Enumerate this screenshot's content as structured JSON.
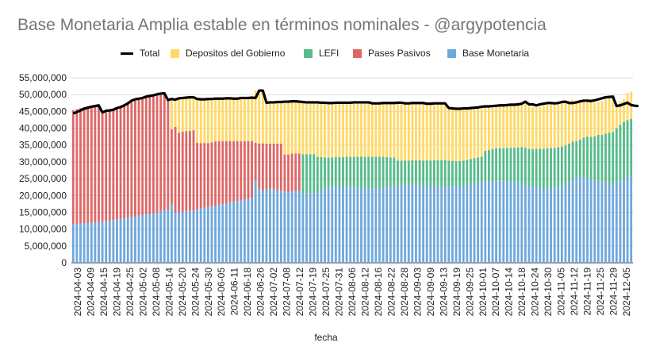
{
  "chart_data": {
    "type": "bar",
    "stacked": true,
    "title": "Base Monetaria Amplia estable en términos nominales - @argypotencia",
    "xlabel": "fecha",
    "ylabel": "",
    "ylim": [
      0,
      55000000
    ],
    "y_ticks": [
      0,
      5000000,
      10000000,
      15000000,
      20000000,
      25000000,
      30000000,
      35000000,
      40000000,
      45000000,
      50000000,
      55000000
    ],
    "y_tick_labels": [
      "0",
      "5,000,000",
      "10,000,000",
      "15,000,000",
      "20,000,000",
      "25,000,000",
      "30,000,000",
      "35,000,000",
      "40,000,000",
      "45,000,000",
      "50,000,000",
      "55,000,000"
    ],
    "x_tick_labels": [
      "2024-04-03",
      "2024-04-09",
      "2024-04-15",
      "2024-04-19",
      "2024-04-25",
      "2024-05-02",
      "2024-05-08",
      "2024-05-14",
      "2024-05-20",
      "2024-05-24",
      "2024-05-30",
      "2024-06-05",
      "2024-06-11",
      "2024-06-18",
      "2024-06-26",
      "2024-07-02",
      "2024-07-08",
      "2024-07-12",
      "2024-07-19",
      "2024-07-25",
      "2024-07-31",
      "2024-08-06",
      "2024-08-12",
      "2024-08-16",
      "2024-08-22",
      "2024-08-28",
      "2024-09-03",
      "2024-09-09",
      "2024-09-13",
      "2024-09-19",
      "2024-09-25",
      "2024-10-01",
      "2024-10-07",
      "2024-10-14",
      "2024-10-18",
      "2024-10-24",
      "2024-10-30",
      "2024-11-05",
      "2024-11-12",
      "2024-11-19",
      "2024-11-25",
      "2024-11-29",
      "2024-12-05"
    ],
    "legend_position": "top",
    "grid": true,
    "series": [
      {
        "name": "Total",
        "kind": "line",
        "color": "#000000",
        "values": [
          44.4,
          44.8,
          45.3,
          45.8,
          46.1,
          46.4,
          46.6,
          46.8,
          44.7,
          45.2,
          45.3,
          45.5,
          46.0,
          46.3,
          46.8,
          47.4,
          48.2,
          48.6,
          48.8,
          49.0,
          49.4,
          49.6,
          49.8,
          50.1,
          50.3,
          50.4,
          48.4,
          48.7,
          48.5,
          48.9,
          49.0,
          49.1,
          49.2,
          49.2,
          48.7,
          48.6,
          48.6,
          48.7,
          48.7,
          48.8,
          48.8,
          48.8,
          48.9,
          48.9,
          48.8,
          48.8,
          49.0,
          49.0,
          49.0,
          49.1,
          49.0,
          51.2,
          51.2,
          47.6,
          47.7,
          47.7,
          47.8,
          47.8,
          47.9,
          47.9,
          48.0,
          48.0,
          47.9,
          47.8,
          47.7,
          47.7,
          47.7,
          47.7,
          47.6,
          47.6,
          47.5,
          47.5,
          47.6,
          47.6,
          47.6,
          47.6,
          47.6,
          47.7,
          47.7,
          47.7,
          47.7,
          47.7,
          47.4,
          47.4,
          47.4,
          47.5,
          47.5,
          47.5,
          47.5,
          47.6,
          47.6,
          47.4,
          47.4,
          47.5,
          47.5,
          47.5,
          47.5,
          47.3,
          47.3,
          47.4,
          47.4,
          47.4,
          47.4,
          46.0,
          45.9,
          45.8,
          45.8,
          45.9,
          45.9,
          46.0,
          46.1,
          46.2,
          46.4,
          46.5,
          46.5,
          46.6,
          46.7,
          46.8,
          46.8,
          46.9,
          47.0,
          47.0,
          47.1,
          47.3,
          47.9,
          47.1,
          47.1,
          46.8,
          47.1,
          47.3,
          47.5,
          47.5,
          47.4,
          47.5,
          47.8,
          47.9,
          47.5,
          47.5,
          47.7,
          48.0,
          48.2,
          48.2,
          48.1,
          48.3,
          48.6,
          48.9,
          49.2,
          49.3,
          49.4,
          46.6,
          46.8,
          47.2,
          47.6,
          46.9,
          46.7,
          46.6
        ]
      },
      {
        "name": "Base Monetaria",
        "color": "#6fa8dc",
        "values": [
          11.4,
          11.6,
          11.7,
          11.8,
          11.8,
          11.9,
          12.0,
          12.1,
          12.3,
          12.4,
          12.5,
          12.7,
          12.9,
          13.1,
          13.2,
          13.4,
          13.6,
          13.8,
          14.0,
          14.2,
          14.4,
          14.5,
          14.7,
          14.9,
          15.4,
          15.6,
          15.7,
          17.5,
          15.0,
          15.1,
          15.2,
          15.3,
          15.4,
          15.5,
          15.9,
          16.2,
          16.4,
          16.6,
          16.8,
          17.0,
          17.2,
          17.4,
          17.6,
          18.0,
          18.2,
          18.4,
          18.6,
          18.8,
          19.0,
          19.4,
          24.5,
          22.0,
          21.5,
          21.8,
          22.0,
          21.8,
          21.6,
          21.4,
          21.2,
          21.0,
          21.2,
          21.4,
          21.5,
          20.5,
          20.6,
          20.6,
          20.7,
          21.0,
          21.5,
          22.0,
          22.5,
          22.8,
          23.0,
          22.9,
          22.8,
          22.8,
          22.6,
          22.5,
          22.4,
          22.4,
          22.2,
          22.1,
          22.0,
          22.1,
          22.2,
          22.3,
          22.5,
          22.6,
          22.8,
          23.0,
          23.1,
          23.2,
          23.3,
          23.2,
          23.1,
          23.0,
          22.9,
          22.9,
          22.8,
          22.8,
          22.7,
          22.6,
          22.6,
          22.7,
          22.7,
          22.8,
          22.9,
          23.0,
          23.1,
          23.2,
          23.4,
          23.6,
          23.8,
          24.0,
          24.2,
          24.3,
          24.4,
          24.5,
          24.5,
          24.4,
          24.2,
          24.0,
          23.8,
          23.5,
          23.0,
          22.8,
          22.5,
          22.4,
          22.3,
          22.2,
          22.2,
          22.3,
          22.5,
          22.8,
          23.0,
          23.5,
          24.0,
          24.8,
          25.4,
          25.6,
          25.4,
          25.0,
          24.8,
          24.6,
          24.4,
          24.0,
          23.8,
          23.5,
          23.3,
          24.0,
          24.5,
          25.0,
          25.5,
          25.7
        ]
      },
      {
        "name": "Pases Pasivos",
        "color": "#e06666",
        "values": [
          34.0,
          34.1,
          34.3,
          34.5,
          34.7,
          34.8,
          34.9,
          34.9,
          32.0,
          32.4,
          32.5,
          32.6,
          32.9,
          33.1,
          33.5,
          33.8,
          34.2,
          34.4,
          34.5,
          34.5,
          34.7,
          34.8,
          34.8,
          34.9,
          34.6,
          34.5,
          32.6,
          22.2,
          25.4,
          23.6,
          23.8,
          23.8,
          23.8,
          23.9,
          19.8,
          19.4,
          19.2,
          19.0,
          19.0,
          19.1,
          19.0,
          18.8,
          18.6,
          18.2,
          18.0,
          17.8,
          17.5,
          17.4,
          17.2,
          16.8,
          11.2,
          13.5,
          14.0,
          13.6,
          13.4,
          13.6,
          13.8,
          14.0,
          11.0,
          11.2,
          11.3,
          11.1,
          11.0,
          0,
          0,
          0,
          0,
          0,
          0,
          0,
          0,
          0,
          0,
          0,
          0,
          0,
          0,
          0,
          0,
          0,
          0,
          0,
          0,
          0,
          0,
          0,
          0,
          0,
          0,
          0,
          0,
          0,
          0,
          0,
          0,
          0,
          0,
          0,
          0,
          0,
          0,
          0,
          0,
          0,
          0,
          0,
          0,
          0,
          0,
          0,
          0,
          0,
          0,
          0,
          0,
          0,
          0,
          0,
          0,
          0,
          0,
          0,
          0,
          0,
          0,
          0,
          0,
          0,
          0,
          0,
          0,
          0,
          0,
          0,
          0,
          0,
          0,
          0,
          0,
          0,
          0,
          0,
          0,
          0,
          0,
          0,
          0,
          0,
          0,
          0,
          0,
          0,
          0,
          0,
          0,
          0
        ]
      },
      {
        "name": "LEFI",
        "color": "#57bb8a",
        "values": [
          0,
          0,
          0,
          0,
          0,
          0,
          0,
          0,
          0,
          0,
          0,
          0,
          0,
          0,
          0,
          0,
          0,
          0,
          0,
          0,
          0,
          0,
          0,
          0,
          0,
          0,
          0,
          0,
          0,
          0,
          0,
          0,
          0,
          0,
          0,
          0,
          0,
          0,
          0,
          0,
          0,
          0,
          0,
          0,
          0,
          0,
          0,
          0,
          0,
          0,
          0,
          0,
          0,
          0,
          0,
          0,
          0,
          0,
          0,
          0,
          0,
          0,
          0,
          11.8,
          11.7,
          11.7,
          11.6,
          10.5,
          9.9,
          9.3,
          8.8,
          8.5,
          8.4,
          8.5,
          8.6,
          8.7,
          8.9,
          9.0,
          9.1,
          9.2,
          9.3,
          9.4,
          9.5,
          9.4,
          9.3,
          9.2,
          8.9,
          8.7,
          8.5,
          7.4,
          7.3,
          7.2,
          7.1,
          7.3,
          7.4,
          7.5,
          7.5,
          7.6,
          7.6,
          7.7,
          7.8,
          7.9,
          8.0,
          7.7,
          7.6,
          7.4,
          7.4,
          7.4,
          7.5,
          7.6,
          7.7,
          7.7,
          7.7,
          9.3,
          9.3,
          9.5,
          9.6,
          9.6,
          9.6,
          9.8,
          10.0,
          10.2,
          10.5,
          10.9,
          11.2,
          11.1,
          11.3,
          11.5,
          11.6,
          11.7,
          11.8,
          11.8,
          11.6,
          11.6,
          11.6,
          11.4,
          11.4,
          11.2,
          10.8,
          11.0,
          11.8,
          12.5,
          12.6,
          13.0,
          13.6,
          14.0,
          14.6,
          15.2,
          15.6,
          16.0,
          16.5,
          16.8,
          16.9,
          17.1,
          15.5,
          14.8,
          13.3,
          12.8
        ]
      },
      {
        "name": "Depositos del Gobierno",
        "color": "#ffd966",
        "values": [
          0,
          0,
          0,
          0,
          0,
          0,
          0,
          0,
          0,
          0,
          0,
          0,
          0,
          0,
          0,
          0,
          0,
          0,
          0,
          0,
          0,
          0,
          0,
          0,
          0,
          0,
          0,
          8.7,
          8.0,
          9.9,
          9.9,
          9.9,
          9.9,
          9.8,
          13.0,
          13.0,
          13.0,
          13.1,
          12.9,
          12.6,
          12.5,
          12.6,
          12.7,
          12.7,
          12.6,
          12.6,
          12.9,
          12.8,
          12.8,
          12.9,
          15.5,
          15.7,
          15.7,
          12.2,
          12.3,
          12.3,
          12.4,
          12.4,
          15.7,
          15.7,
          15.5,
          15.5,
          15.4,
          15.5,
          15.4,
          15.4,
          15.4,
          16.2,
          16.2,
          16.2,
          16.2,
          16.2,
          16.2,
          16.2,
          16.2,
          16.1,
          16.1,
          16.2,
          16.2,
          16.1,
          16.2,
          16.2,
          15.9,
          15.9,
          15.9,
          16.0,
          16.1,
          16.2,
          16.2,
          17.2,
          17.2,
          17.0,
          17.0,
          17.0,
          17.0,
          17.0,
          17.1,
          16.8,
          16.9,
          16.9,
          16.9,
          16.9,
          16.8,
          15.6,
          15.6,
          15.6,
          15.5,
          15.5,
          15.3,
          15.2,
          15.0,
          14.9,
          14.9,
          13.2,
          13.0,
          12.8,
          12.7,
          12.7,
          12.6,
          12.7,
          12.8,
          12.8,
          12.8,
          12.9,
          13.6,
          12.6,
          12.5,
          12.4,
          12.5,
          12.7,
          13.0,
          13.1,
          13.0,
          13.0,
          13.1,
          13.0,
          12.8,
          12.5,
          12.0,
          11.8,
          11.3,
          10.9,
          10.6,
          10.0,
          9.9,
          10.1,
          10.3,
          10.3,
          10.4,
          7.1,
          7.0,
          6.9,
          8.1,
          8.1,
          8.4,
          8.1
        ]
      }
    ],
    "units": "values in millions (bars stacked to total)"
  },
  "legend": [
    {
      "name": "Total",
      "color": "#000000",
      "kind": "line"
    },
    {
      "name": "Depositos del Gobierno",
      "color": "#ffd966",
      "kind": "box"
    },
    {
      "name": "LEFI",
      "color": "#57bb8a",
      "kind": "box"
    },
    {
      "name": "Pases Pasivos",
      "color": "#e06666",
      "kind": "box"
    },
    {
      "name": "Base Monetaria",
      "color": "#6fa8dc",
      "kind": "box"
    }
  ]
}
